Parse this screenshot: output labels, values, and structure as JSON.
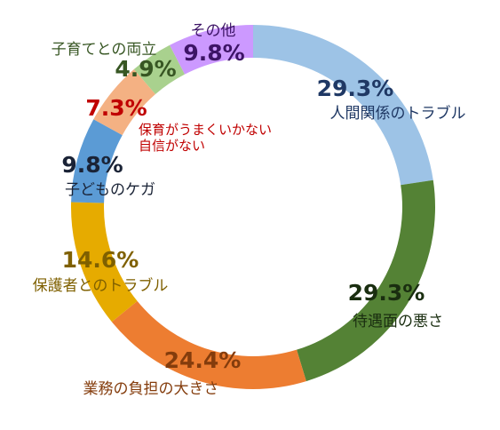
{
  "chart_data": {
    "type": "pie",
    "title": "",
    "slices": [
      {
        "label": "人間関係のトラブル",
        "value": 29.3,
        "pct_text": "29.3%",
        "color": "#9dc3e6",
        "text_color": "#1f3864"
      },
      {
        "label": "待遇面の悪さ",
        "value": 29.3,
        "pct_text": "29.3%",
        "color": "#548235",
        "text_color": "#1a2e10"
      },
      {
        "label": "業務の負担の大きさ",
        "value": 24.4,
        "pct_text": "24.4%",
        "color": "#ed7d31",
        "text_color": "#843c0c"
      },
      {
        "label": "保護者とのトラブル",
        "value": 14.6,
        "pct_text": "14.6%",
        "color": "#e6ab00",
        "text_color": "#7f6000"
      },
      {
        "label": "子どものケガ",
        "value": 9.8,
        "pct_text": "9.8%",
        "color": "#5b9bd5",
        "text_color": "#1a2336"
      },
      {
        "label": "保育がうまくいかない\n自信がない",
        "value": 7.3,
        "pct_text": "7.3%",
        "color": "#f4b183",
        "text_color": "#c00000"
      },
      {
        "label": "子育てとの両立",
        "value": 4.9,
        "pct_text": "4.9%",
        "color": "#a9d18e",
        "text_color": "#375623"
      },
      {
        "label": "その他",
        "value": 9.8,
        "pct_text": "9.8%",
        "color": "#cc99ff",
        "text_color": "#3d1466"
      }
    ]
  }
}
